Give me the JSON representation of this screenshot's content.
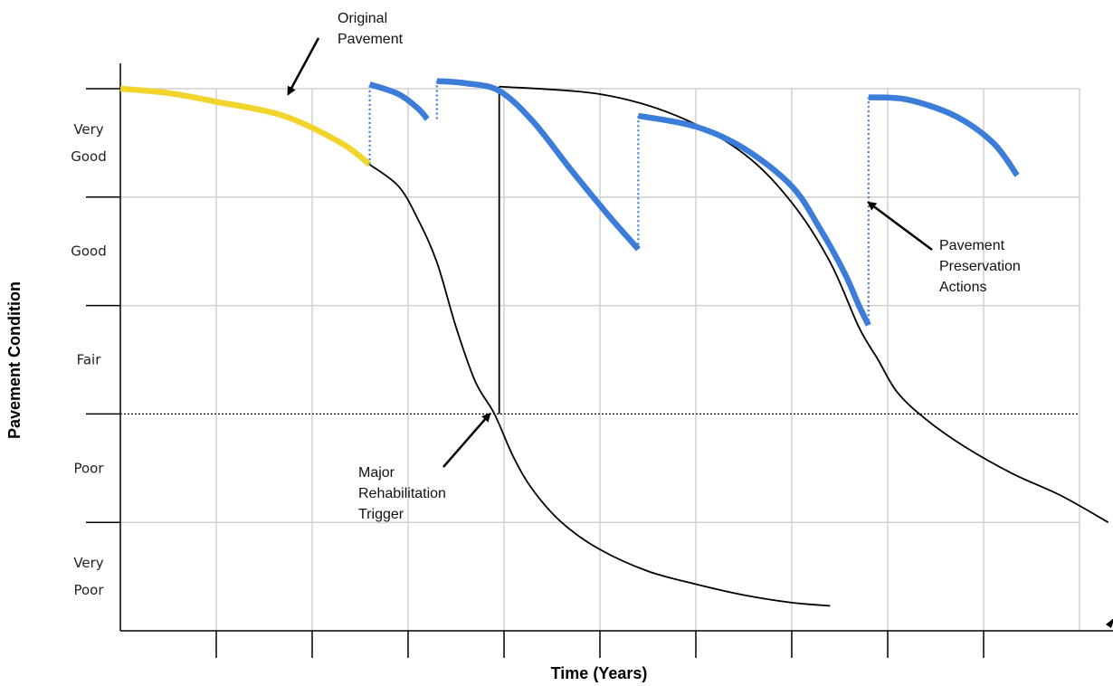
{
  "chart_data": {
    "type": "line",
    "title": "",
    "xlabel": "Time (Years)",
    "ylabel": "Pavement Condition",
    "xlim": [
      0,
      10
    ],
    "ylim": [
      0,
      5
    ],
    "grid": true,
    "x_tick_labels": [],
    "condition_levels": [
      {
        "label_lines": [
          "Very",
          "Poor"
        ],
        "range": [
          0,
          1
        ]
      },
      {
        "label_lines": [
          "Poor"
        ],
        "range": [
          1,
          2
        ]
      },
      {
        "label_lines": [
          "Fair"
        ],
        "range": [
          2,
          3
        ]
      },
      {
        "label_lines": [
          "Good"
        ],
        "range": [
          3,
          4
        ]
      },
      {
        "label_lines": [
          "Very",
          "Good"
        ],
        "range": [
          4,
          5
        ]
      }
    ],
    "trigger_level": 2,
    "series": [
      {
        "kind": "original-pavement",
        "color": "#f2d52c",
        "points": [
          [
            0,
            5
          ],
          [
            0.5,
            4.96
          ],
          [
            1,
            4.88
          ],
          [
            1.7,
            4.75
          ],
          [
            2.3,
            4.5
          ],
          [
            2.6,
            4.3
          ]
        ]
      },
      {
        "kind": "deterioration",
        "color": "#000000",
        "points": [
          [
            2.6,
            4.3
          ],
          [
            2.9,
            4.1
          ],
          [
            3.1,
            3.8
          ],
          [
            3.3,
            3.4
          ],
          [
            3.5,
            2.8
          ],
          [
            3.7,
            2.3
          ],
          [
            3.9,
            2.0
          ],
          [
            4.1,
            1.6
          ],
          [
            4.3,
            1.3
          ],
          [
            4.6,
            1.0
          ],
          [
            5,
            0.75
          ],
          [
            5.5,
            0.55
          ],
          [
            6,
            0.43
          ],
          [
            6.5,
            0.33
          ],
          [
            7,
            0.26
          ],
          [
            7.4,
            0.23
          ]
        ]
      },
      {
        "kind": "rehabilitation-jump",
        "color": "#000000",
        "points": [
          [
            3.95,
            2.0
          ],
          [
            3.95,
            5.02
          ]
        ]
      },
      {
        "kind": "after-rehabilitation",
        "color": "#000000",
        "points": [
          [
            3.95,
            5.02
          ],
          [
            5,
            4.95
          ],
          [
            5.8,
            4.75
          ],
          [
            6.5,
            4.4
          ],
          [
            7,
            3.95
          ],
          [
            7.4,
            3.4
          ],
          [
            7.7,
            2.8
          ],
          [
            7.9,
            2.5
          ],
          [
            8.1,
            2.2
          ],
          [
            8.4,
            1.95
          ],
          [
            8.8,
            1.7
          ],
          [
            9.3,
            1.45
          ],
          [
            9.8,
            1.25
          ],
          [
            10.3,
            1.0
          ]
        ]
      },
      {
        "kind": "preservation",
        "color": "#3b7dd8",
        "points": [
          [
            2.6,
            5.04
          ],
          [
            2.9,
            4.95
          ],
          [
            3.1,
            4.82
          ],
          [
            3.2,
            4.72
          ]
        ]
      },
      {
        "kind": "preservation",
        "color": "#3b7dd8",
        "points": [
          [
            3.3,
            5.07
          ],
          [
            3.6,
            5.05
          ],
          [
            3.95,
            4.98
          ],
          [
            4.3,
            4.7
          ],
          [
            4.7,
            4.25
          ],
          [
            5.1,
            3.82
          ],
          [
            5.4,
            3.52
          ]
        ]
      },
      {
        "kind": "preservation",
        "color": "#3b7dd8",
        "points": [
          [
            5.4,
            4.75
          ],
          [
            6,
            4.65
          ],
          [
            6.5,
            4.45
          ],
          [
            7,
            4.1
          ],
          [
            7.3,
            3.7
          ],
          [
            7.55,
            3.3
          ],
          [
            7.7,
            3.0
          ],
          [
            7.8,
            2.82
          ]
        ]
      },
      {
        "kind": "preservation",
        "color": "#3b7dd8",
        "points": [
          [
            7.8,
            4.92
          ],
          [
            8.2,
            4.9
          ],
          [
            8.7,
            4.75
          ],
          [
            9.1,
            4.5
          ],
          [
            9.35,
            4.2
          ]
        ]
      }
    ],
    "preservation_drops": [
      {
        "x": 2.6,
        "from": 4.3,
        "to": 5.04
      },
      {
        "x": 3.3,
        "from": 4.72,
        "to": 5.07
      },
      {
        "x": 5.4,
        "from": 3.52,
        "to": 4.75
      },
      {
        "x": 7.8,
        "from": 2.82,
        "to": 4.92
      }
    ],
    "annotations": [
      {
        "id": "original",
        "lines": [
          "Original",
          "Pavement"
        ],
        "target": [
          1.75,
          4.95
        ]
      },
      {
        "id": "preservation",
        "lines": [
          "Pavement",
          "Preservation",
          "Actions"
        ],
        "target": [
          7.8,
          3.95
        ]
      },
      {
        "id": "rehab",
        "lines": [
          "Major",
          "Rehabilitation",
          "Trigger"
        ],
        "target": [
          3.85,
          2.0
        ]
      }
    ]
  }
}
